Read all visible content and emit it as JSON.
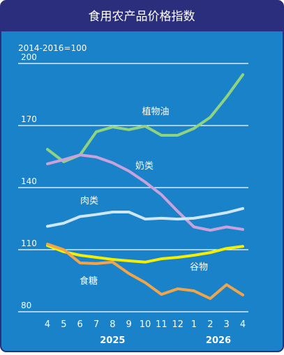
{
  "chart_data": {
    "type": "line",
    "title": "食用农产品价格指数",
    "subtitle": "2014-2016=100",
    "categories": [
      "4",
      "5",
      "6",
      "7",
      "8",
      "9",
      "10",
      "11",
      "12",
      "1",
      "2",
      "3",
      "4"
    ],
    "x_groups": [
      {
        "label": "2025",
        "start": 0,
        "end": 8
      },
      {
        "label": "2026",
        "start": 9,
        "end": 12
      }
    ],
    "ylim": [
      80,
      200
    ],
    "yticks": [
      80,
      110,
      140,
      170,
      200
    ],
    "grid": true,
    "series": [
      {
        "name": "植物油",
        "color": "#8ed480",
        "values": [
          158.5,
          152.5,
          155.8,
          167,
          169.3,
          168,
          169.7,
          165.3,
          165.3,
          168.6,
          174,
          183.8,
          194.6
        ]
      },
      {
        "name": "奶类",
        "color": "#c9a2dc",
        "values": [
          151.5,
          153.5,
          155.8,
          154.8,
          152,
          148,
          142.7,
          136.6,
          128.5,
          121,
          119.4,
          121,
          119.8
        ]
      },
      {
        "name": "肉类",
        "color": "#cfe6f6",
        "values": [
          121.3,
          122.8,
          126,
          127,
          128.2,
          128.2,
          124.8,
          125.2,
          124.8,
          125.2,
          126.5,
          127.9,
          129.9
        ]
      },
      {
        "name": "谷物",
        "color": "#f2f000",
        "values": [
          112,
          109,
          107.3,
          106.3,
          105.3,
          104.6,
          104,
          105.6,
          106.3,
          107.3,
          108.6,
          110.6,
          111.6
        ]
      },
      {
        "name": "食糖",
        "color": "#f0a54a",
        "values": [
          112.7,
          110,
          103.6,
          103.3,
          104,
          98.5,
          94.1,
          88.4,
          91.1,
          90.1,
          86.4,
          93.1,
          88.1
        ]
      }
    ]
  }
}
